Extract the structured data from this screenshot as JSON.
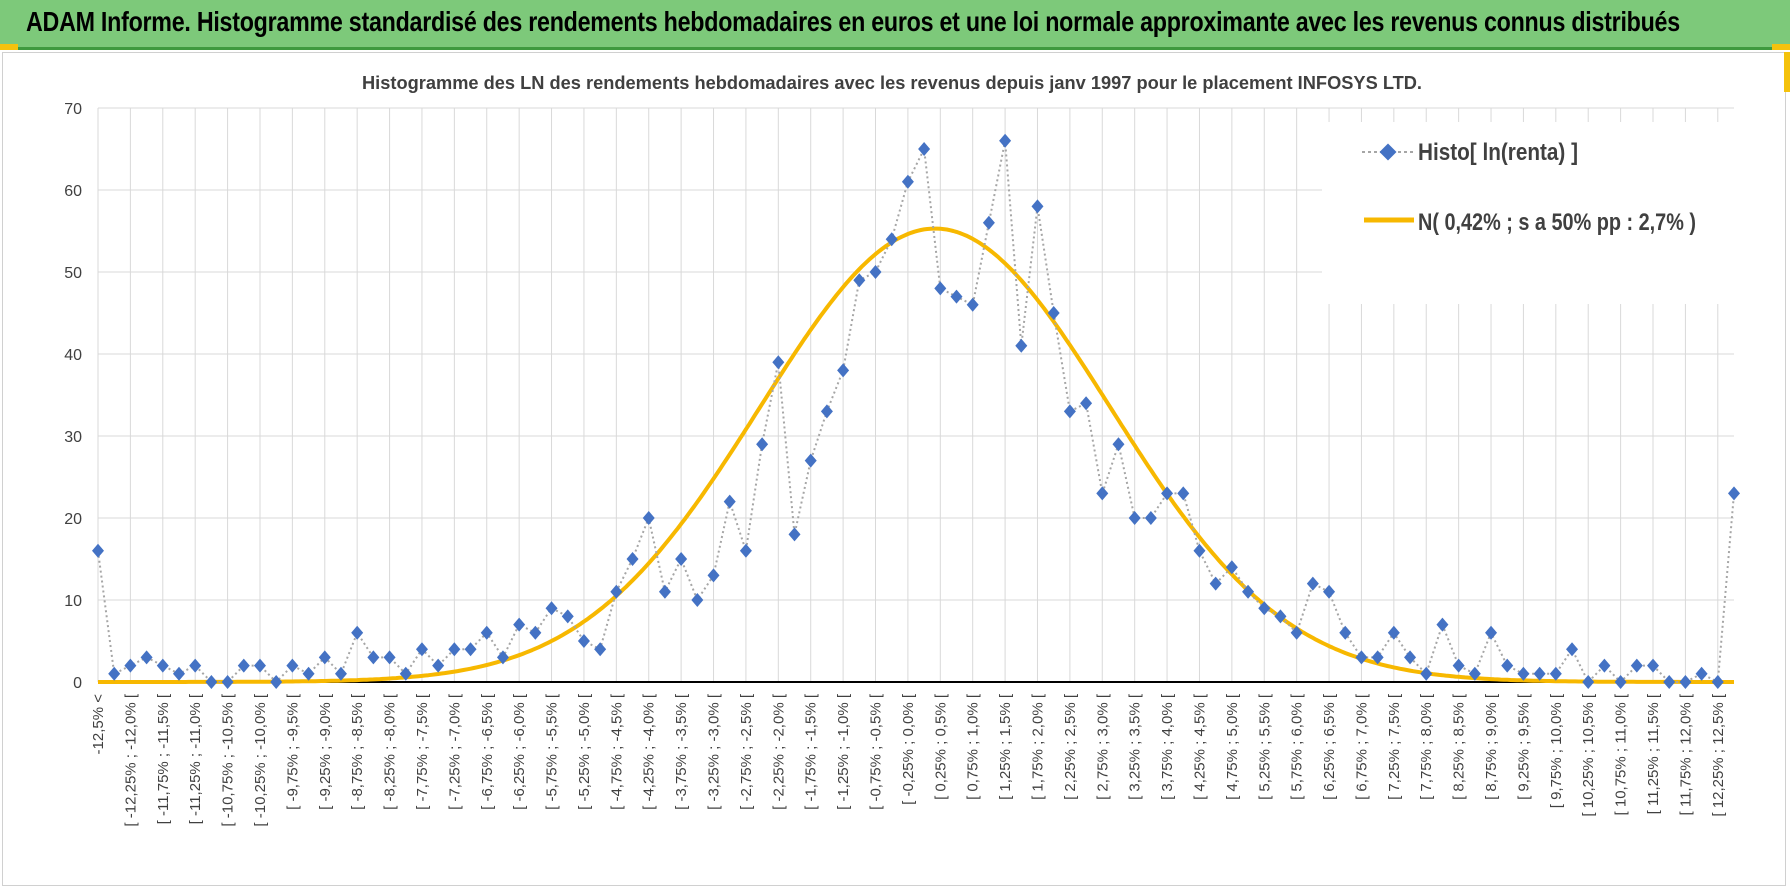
{
  "banner": {
    "title": "ADAM Informe. Histogramme standardisé des rendements hebdomadaires en euros et une loi normale approximante avec les revenus connus distribués"
  },
  "colors": {
    "banner_bg": "#7dc97a",
    "accent": "#f4c20d",
    "histo_marker": "#4472c4",
    "histo_line": "#a6a6a6",
    "normal_line": "#f7b800"
  },
  "chart_data": {
    "type": "line",
    "title": "Histogramme des LN des rendements hebdomadaires avec les revenus depuis janv 1997 pour le placement INFOSYS LTD.",
    "xlabel": "",
    "ylabel": "",
    "ylim": [
      0,
      70
    ],
    "yticks": [
      0,
      10,
      20,
      30,
      40,
      50,
      60,
      70
    ],
    "grid": true,
    "legend_position": "top-right",
    "categories": [
      "-12,5% <",
      "[ -12,25% ; -12,0% [",
      "[ -11,75% ; -11,5% [",
      "[ -11,25% ; -11,0% [",
      "[ -10,75% ; -10,5% [",
      "[ -10,25% ; -10,0% [",
      "[ -9,75% ; -9,5% [",
      "[ -9,25% ; -9,0% [",
      "[ -8,75% ; -8,5% [",
      "[ -8,25% ; -8,0% [",
      "[ -7,75% ; -7,5% [",
      "[ -7,25% ; -7,0% [",
      "[ -6,75% ; -6,5% [",
      "[ -6,25% ; -6,0% [",
      "[ -5,75% ; -5,5% [",
      "[ -5,25% ; -5,0% [",
      "[ -4,75% ; -4,5% [",
      "[ -4,25% ; -4,0% [",
      "[ -3,75% ; -3,5% [",
      "[ -3,25% ; -3,0% [",
      "[ -2,75% ; -2,5% [",
      "[ -2,25% ; -2,0% [",
      "[ -1,75% ; -1,5% [",
      "[ -1,25% ; -1,0% [",
      "[ -0,75% ; -0,5% [",
      "[ -0,25% ; 0,0% [",
      "[ 0,25% ; 0,5% [",
      "[ 0,75% ; 1,0% [",
      "[ 1,25% ; 1,5% [",
      "[ 1,75% ; 2,0% [",
      "[ 2,25% ; 2,5% [",
      "[ 2,75% ; 3,0% [",
      "[ 3,25% ; 3,5% [",
      "[ 3,75% ; 4,0% [",
      "[ 4,25% ; 4,5% [",
      "[ 4,75% ; 5,0% [",
      "[ 5,25% ; 5,5% [",
      "[ 5,75% ; 6,0% [",
      "[ 6,25% ; 6,5% [",
      "[ 6,75% ; 7,0% [",
      "[ 7,25% ; 7,5% [",
      "[ 7,75% ; 8,0% [",
      "[ 8,25% ; 8,5% [",
      "[ 8,75% ; 9,0% [",
      "[ 9,25% ; 9,5% [",
      "[ 9,75% ; 10,0% [",
      "[ 10,25% ; 10,5% [",
      "[ 10,75% ; 11,0% [",
      "[ 11,25% ; 11,5% [",
      "[ 11,75% ; 12,0% [",
      "[ 12,25% ; 12,5% ["
    ],
    "x": [
      -12.5,
      -12.25,
      -12.0,
      -11.75,
      -11.5,
      -11.25,
      -11.0,
      -10.75,
      -10.5,
      -10.25,
      -10.0,
      -9.75,
      -9.5,
      -9.25,
      -9.0,
      -8.75,
      -8.5,
      -8.25,
      -8.0,
      -7.75,
      -7.5,
      -7.25,
      -7.0,
      -6.75,
      -6.5,
      -6.25,
      -6.0,
      -5.75,
      -5.5,
      -5.25,
      -5.0,
      -4.75,
      -4.5,
      -4.25,
      -4.0,
      -3.75,
      -3.5,
      -3.25,
      -3.0,
      -2.75,
      -2.5,
      -2.25,
      -2.0,
      -1.75,
      -1.5,
      -1.25,
      -1.0,
      -0.75,
      -0.5,
      -0.25,
      0.0,
      0.25,
      0.5,
      0.75,
      1.0,
      1.25,
      1.5,
      1.75,
      2.0,
      2.25,
      2.5,
      2.75,
      3.0,
      3.25,
      3.5,
      3.75,
      4.0,
      4.25,
      4.5,
      4.75,
      5.0,
      5.25,
      5.5,
      5.75,
      6.0,
      6.25,
      6.5,
      6.75,
      7.0,
      7.25,
      7.5,
      7.75,
      8.0,
      8.25,
      8.5,
      8.75,
      9.0,
      9.25,
      9.5,
      9.75,
      10.0,
      10.25,
      10.5,
      10.75,
      11.0,
      11.25,
      11.5,
      11.75,
      12.0,
      12.25,
      12.5,
      12.75
    ],
    "series": [
      {
        "name": "Histo[ ln(renta) ]",
        "style": "dotted-line-diamond-markers",
        "values": [
          16,
          1,
          2,
          3,
          2,
          1,
          2,
          0,
          0,
          2,
          2,
          0,
          2,
          1,
          3,
          1,
          6,
          3,
          3,
          1,
          4,
          2,
          4,
          4,
          6,
          3,
          7,
          6,
          9,
          8,
          5,
          4,
          11,
          15,
          20,
          11,
          15,
          10,
          13,
          22,
          16,
          29,
          39,
          18,
          27,
          33,
          38,
          49,
          50,
          54,
          61,
          65,
          48,
          47,
          46,
          56,
          66,
          41,
          58,
          45,
          33,
          34,
          23,
          29,
          20,
          20,
          23,
          23,
          16,
          12,
          14,
          11,
          9,
          8,
          6,
          12,
          11,
          6,
          3,
          3,
          6,
          3,
          1,
          7,
          2,
          1,
          6,
          2,
          1,
          1,
          1,
          4,
          0,
          2,
          0,
          2,
          2,
          0,
          0,
          1,
          0,
          23
        ]
      },
      {
        "name": "N( 0,42% ; s a 50% pp : 2,7% )",
        "style": "smooth-solid-line",
        "mean": 0.42,
        "sd": 2.7,
        "peak": 55.3
      }
    ]
  }
}
